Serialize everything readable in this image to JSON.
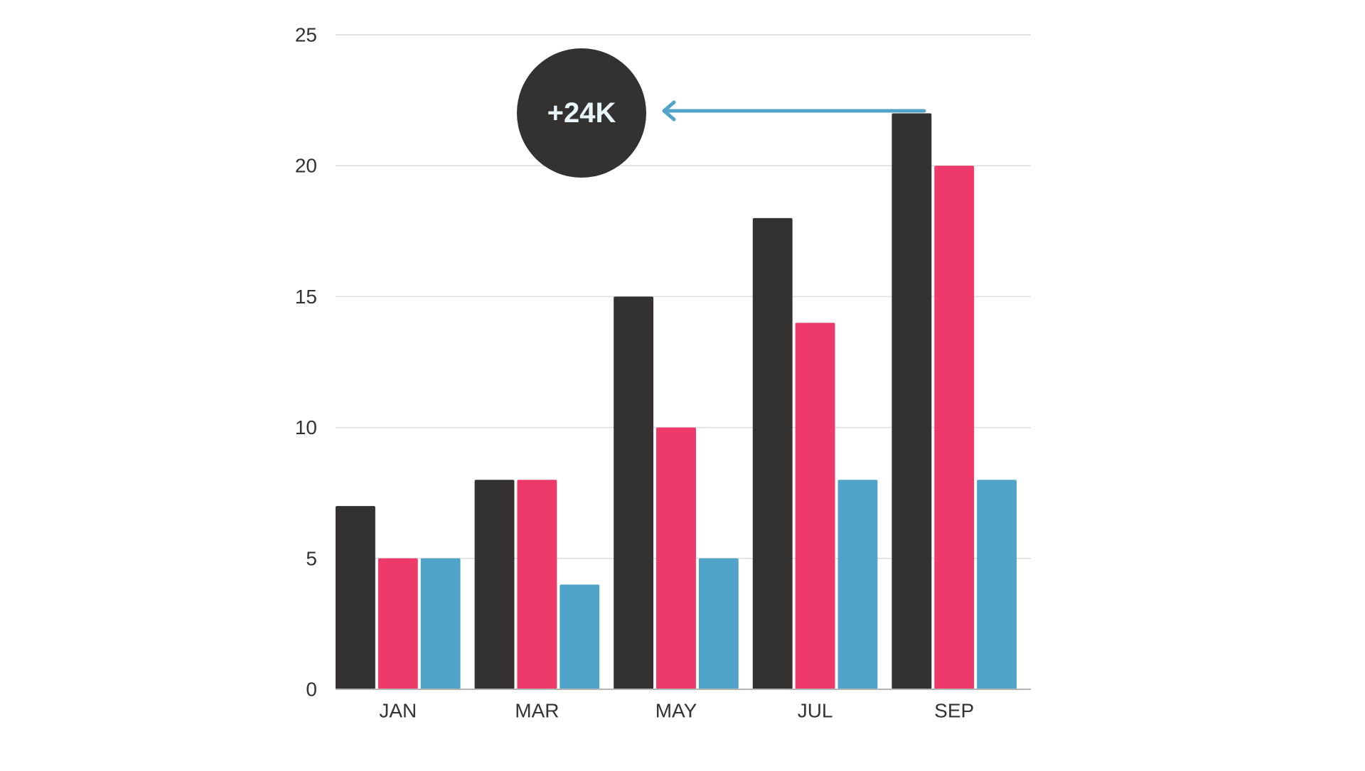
{
  "chart_data": {
    "type": "bar",
    "categories": [
      "JAN",
      "MAR",
      "MAY",
      "JUL",
      "SEP"
    ],
    "series": [
      {
        "values": [
          7,
          8,
          15,
          18,
          22
        ],
        "color": "#333231"
      },
      {
        "values": [
          5,
          8,
          10,
          14,
          20
        ],
        "color": "#ee3a6a"
      },
      {
        "values": [
          5,
          4,
          5,
          8,
          8
        ],
        "color": "#50a4ca"
      }
    ],
    "ylim": [
      0,
      25
    ],
    "yticks": [
      "0",
      "5",
      "10",
      "15",
      "20",
      "25"
    ],
    "grid": true,
    "annotation": {
      "text": "+24K",
      "badge_color": "#333231",
      "arrow_color": "#50a4ca",
      "text_color": "#e8f6fa"
    }
  }
}
